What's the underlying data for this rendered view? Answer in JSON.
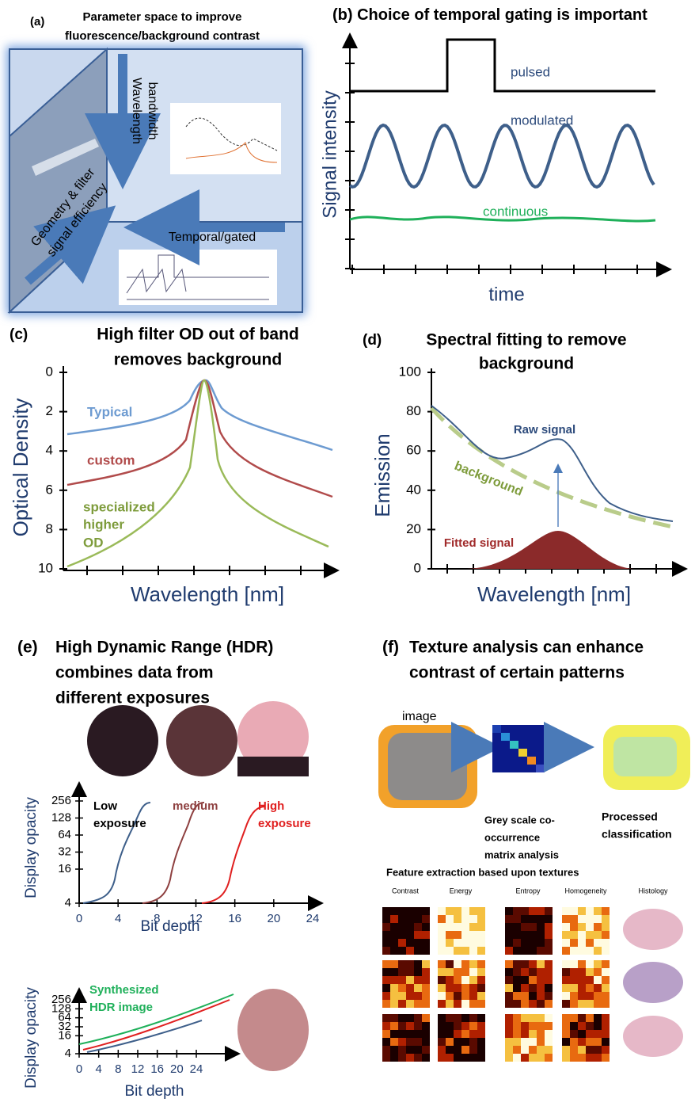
{
  "panels": {
    "a": {
      "label": "(a)",
      "title": [
        "Parameter space to improve",
        "fluorescence/background contrast"
      ],
      "arrows": {
        "wavelength": [
          "Wavelength",
          "bandwidth"
        ],
        "geometry": [
          "Geometry & filter",
          "signal efficiency"
        ],
        "temporal": "Temporal/gated"
      }
    },
    "b": {
      "label": "(b)",
      "title": "Choice of temporal gating is important",
      "y_label": "Signal intensity",
      "x_label": "time",
      "curves": [
        "pulsed",
        "modulated",
        "continuous"
      ]
    },
    "c": {
      "label": "(c)",
      "title": [
        "High filter OD out of band",
        "removes background"
      ],
      "y_label": "Optical Density",
      "x_label": "Wavelength  [nm]",
      "yticks": [
        0,
        2,
        4,
        6,
        8,
        10
      ],
      "curves": {
        "typical": "Typical",
        "custom": "custom",
        "specialized": [
          "specialized",
          "higher",
          "OD"
        ]
      }
    },
    "d": {
      "label": "(d)",
      "title": [
        "Spectral fitting to remove",
        "background"
      ],
      "y_label": "Emission",
      "x_label": "Wavelength  [nm]",
      "yticks": [
        0,
        20,
        40,
        60,
        80,
        100
      ],
      "curves": {
        "raw": "Raw signal",
        "background": "background",
        "fitted": "Fitted signal"
      }
    },
    "e": {
      "label": "(e)",
      "title": [
        "High Dynamic Range (HDR)",
        "combines data from",
        "different exposures"
      ],
      "exposures": {
        "low": [
          "Low",
          "exposure"
        ],
        "medium": "medium",
        "high": [
          "High",
          "exposure"
        ]
      },
      "plot1": {
        "y_label": "Display opacity",
        "x_label": "Bit depth",
        "yticks": [
          4,
          16,
          32,
          64,
          128,
          256
        ],
        "xticks": [
          0,
          4,
          8,
          12,
          16,
          20,
          24
        ]
      },
      "plot2": {
        "y_label": "Display opacity",
        "x_label": "Bit depth",
        "yticks": [
          4,
          16,
          32,
          64,
          128,
          256
        ],
        "xticks": [
          0,
          4,
          8,
          12,
          16,
          20,
          24
        ],
        "annotation": [
          "Synthesized",
          "HDR image"
        ]
      }
    },
    "f": {
      "label": "(f)",
      "title": [
        "Texture analysis can enhance",
        "contrast of certain patterns"
      ],
      "image_label": "image",
      "matrix_label": [
        "Grey scale co-",
        "occurrence",
        "matrix analysis"
      ],
      "processed_label": [
        "Processed",
        "classification"
      ],
      "feature_title": "Feature extraction based upon textures",
      "columns": [
        "Contrast",
        "Energy",
        "Entropy",
        "Homogeneity",
        "Histology"
      ]
    }
  }
}
